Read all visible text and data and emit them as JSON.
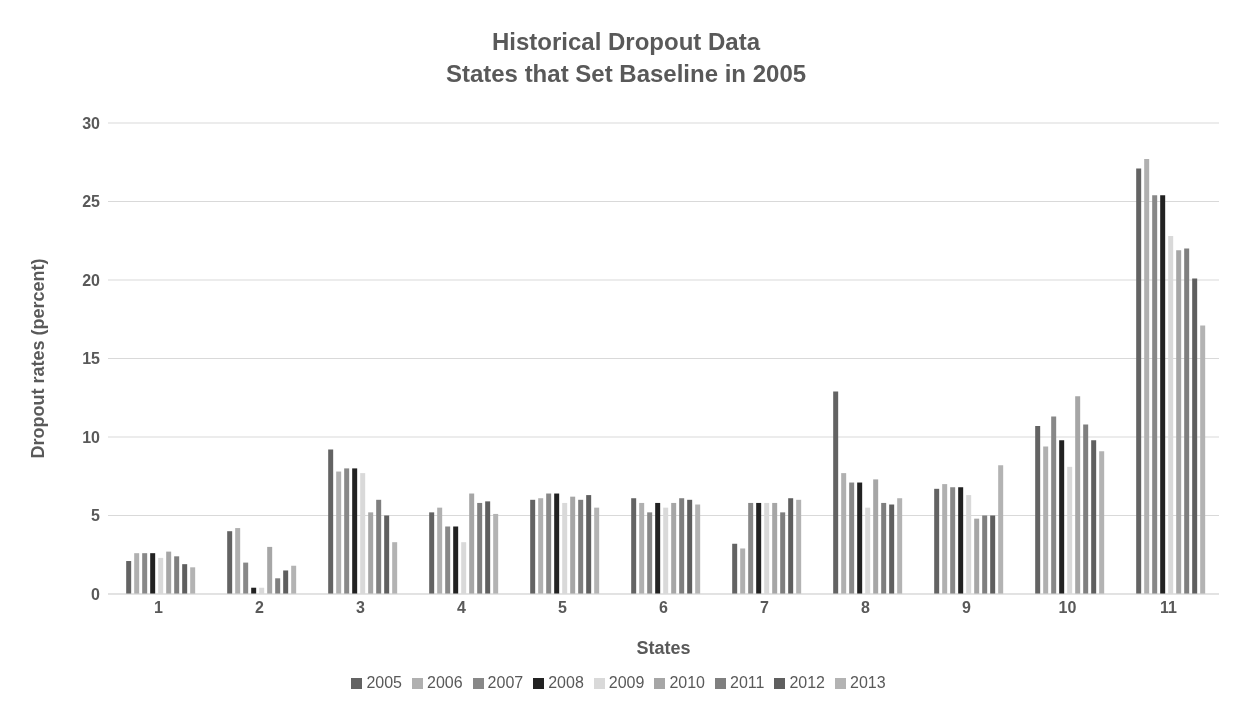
{
  "chart_data": {
    "type": "bar",
    "title": "Historical Dropout Data\nStates that Set Baseline in 2005",
    "xlabel": "States",
    "ylabel": "Dropout rates (percent)",
    "categories": [
      "1",
      "2",
      "3",
      "4",
      "5",
      "6",
      "7",
      "8",
      "9",
      "10",
      "11"
    ],
    "series": [
      {
        "name": "2005",
        "color": "#636363",
        "values": [
          2.1,
          4.0,
          9.2,
          5.2,
          6.0,
          6.1,
          3.2,
          12.9,
          6.7,
          10.7,
          27.1
        ]
      },
      {
        "name": "2006",
        "color": "#b0b0b0",
        "values": [
          2.6,
          4.2,
          7.8,
          5.5,
          6.1,
          5.8,
          2.9,
          7.7,
          7.0,
          9.4,
          27.7
        ]
      },
      {
        "name": "2007",
        "color": "#888888",
        "values": [
          2.6,
          2.0,
          8.0,
          4.3,
          6.4,
          5.2,
          5.8,
          7.1,
          6.8,
          11.3,
          25.4
        ]
      },
      {
        "name": "2008",
        "color": "#222222",
        "values": [
          2.6,
          0.4,
          8.0,
          4.3,
          6.4,
          5.8,
          5.8,
          7.1,
          6.8,
          9.8,
          25.4
        ]
      },
      {
        "name": "2009",
        "color": "#d9d9d9",
        "values": [
          2.3,
          0.4,
          7.7,
          3.3,
          5.8,
          5.5,
          5.8,
          5.5,
          6.3,
          8.1,
          22.8
        ]
      },
      {
        "name": "2010",
        "color": "#a6a6a6",
        "values": [
          2.7,
          3.0,
          5.2,
          6.4,
          6.2,
          5.8,
          5.8,
          7.3,
          4.8,
          12.6,
          21.9
        ]
      },
      {
        "name": "2011",
        "color": "#7f7f7f",
        "values": [
          2.4,
          1.0,
          6.0,
          5.8,
          6.0,
          6.1,
          5.2,
          5.8,
          5.0,
          10.8,
          22.0
        ]
      },
      {
        "name": "2012",
        "color": "#5f5f5f",
        "values": [
          1.9,
          1.5,
          5.0,
          5.9,
          6.3,
          6.0,
          6.1,
          5.7,
          5.0,
          9.8,
          20.1
        ]
      },
      {
        "name": "2013",
        "color": "#b3b3b3",
        "values": [
          1.7,
          1.8,
          3.3,
          5.1,
          5.5,
          5.7,
          6.0,
          6.1,
          8.2,
          9.1,
          17.1
        ]
      }
    ],
    "ylim": [
      0,
      30
    ],
    "yticks": [
      0,
      5,
      10,
      15,
      20,
      25,
      30
    ],
    "grid": "y",
    "legend": "bottom"
  }
}
